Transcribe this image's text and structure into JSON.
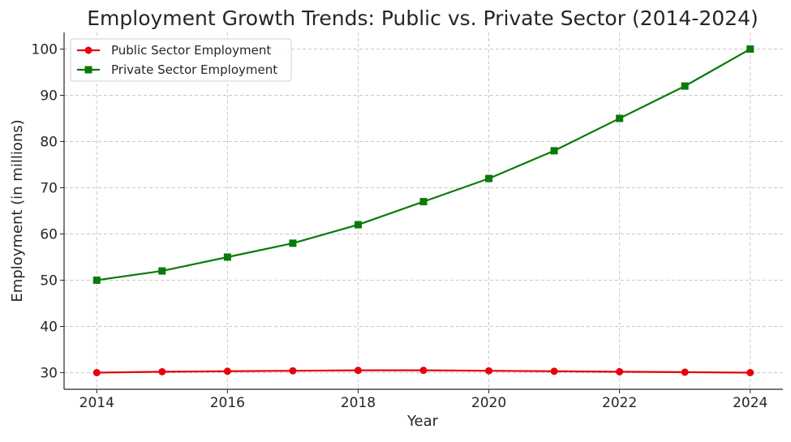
{
  "chart_data": {
    "type": "line",
    "title": "Employment Growth Trends: Public vs. Private Sector (2014-2024)",
    "xlabel": "Year",
    "ylabel": "Employment (in millions)",
    "x": [
      2014,
      2015,
      2016,
      2017,
      2018,
      2019,
      2020,
      2021,
      2022,
      2023,
      2024
    ],
    "x_ticks": [
      "2014",
      "2016",
      "2018",
      "2020",
      "2022",
      "2024"
    ],
    "y_ticks": [
      "30",
      "40",
      "50",
      "60",
      "70",
      "80",
      "90",
      "100"
    ],
    "xlim": [
      2013.5,
      2024.5
    ],
    "ylim": [
      26.4,
      103.6
    ],
    "grid": true,
    "legend_position": "top-left",
    "series": [
      {
        "name": "Public Sector Employment",
        "color": "#e8000b",
        "marker": "circle",
        "values": [
          30.0,
          30.2,
          30.3,
          30.4,
          30.5,
          30.5,
          30.4,
          30.3,
          30.2,
          30.1,
          30.0
        ]
      },
      {
        "name": "Private Sector Employment",
        "color": "#0a7a0a",
        "marker": "square",
        "values": [
          50,
          52,
          55,
          58,
          62,
          67,
          72,
          78,
          85,
          92,
          100
        ]
      }
    ]
  }
}
